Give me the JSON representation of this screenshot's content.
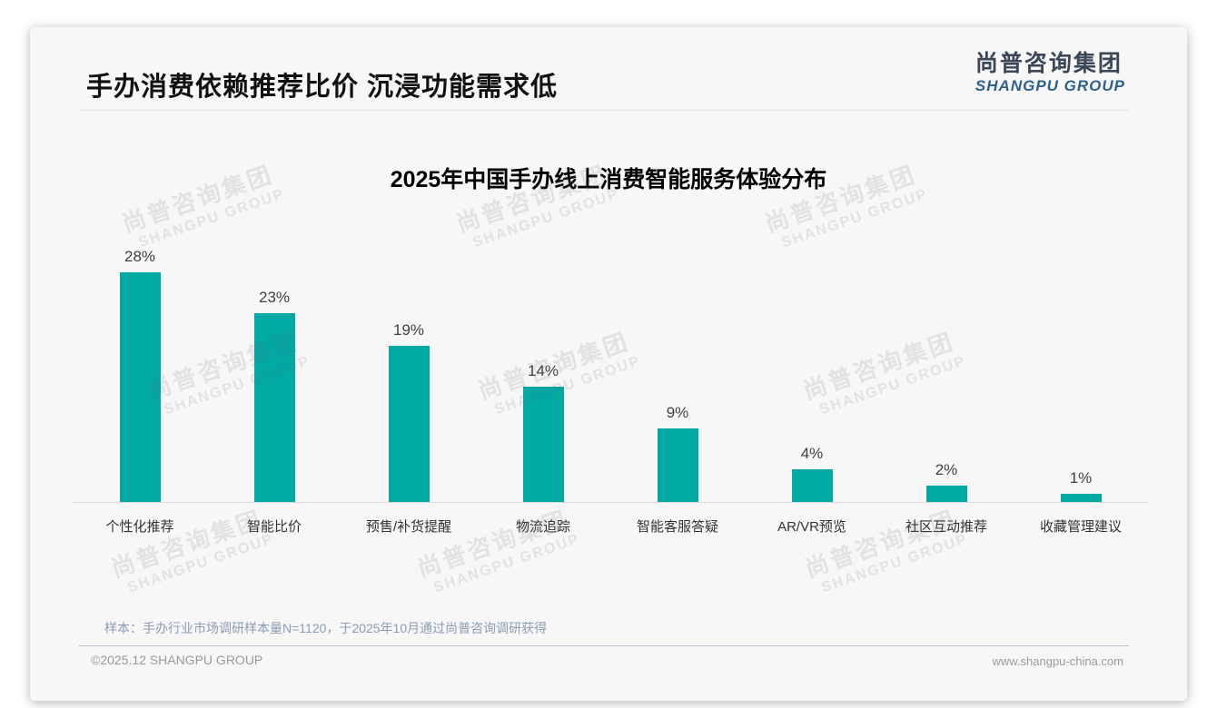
{
  "page": {
    "title": "手办消费依赖推荐比价 沉浸功能需求低",
    "logo": {
      "cn": "尚普咨询集团",
      "en": "SHANGPU GROUP"
    },
    "watermark": {
      "cn": "尚普咨询集团",
      "en": "SHANGPU GROUP"
    },
    "source_note": "样本：手办行业市场调研样本量N=1120，于2025年10月通过尚普咨询调研获得",
    "footer_left": "©2025.12 SHANGPU GROUP",
    "footer_right": "www.shangpu-china.com"
  },
  "chart_data": {
    "type": "bar",
    "title": "2025年中国手办线上消费智能服务体验分布",
    "categories": [
      "个性化推荐",
      "智能比价",
      "预售/补货提醒",
      "物流追踪",
      "智能客服答疑",
      "AR/VR预览",
      "社区互动推荐",
      "收藏管理建议"
    ],
    "values": [
      28,
      23,
      19,
      14,
      9,
      4,
      2,
      1
    ],
    "value_labels": [
      "28%",
      "23%",
      "19%",
      "14%",
      "9%",
      "4%",
      "2%",
      "1%"
    ],
    "unit": "%",
    "ylim": [
      0,
      30
    ],
    "bar_color": "#00a9a4",
    "grid": false,
    "legend": false,
    "xlabel": "",
    "ylabel": ""
  }
}
